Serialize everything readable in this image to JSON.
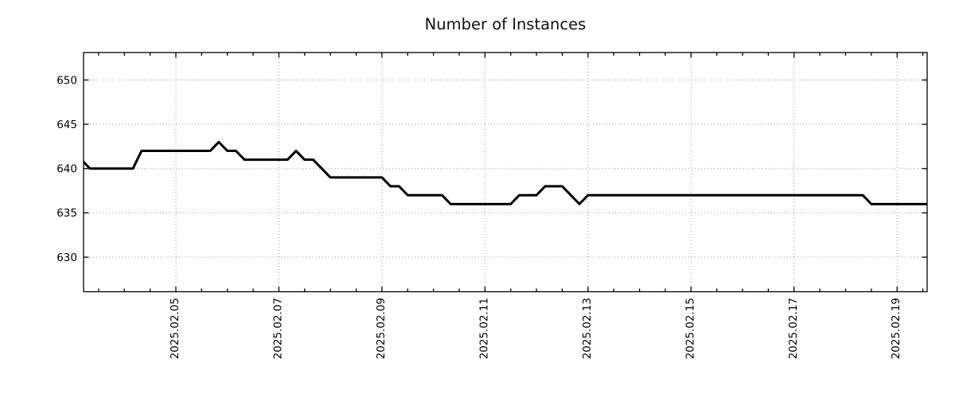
{
  "title": "Number of Instances",
  "chart_data": {
    "type": "line",
    "title": "Number of Instances",
    "xlabel": "",
    "ylabel": "",
    "grid": "dotted",
    "legend_position": "none",
    "line_color": "#000000",
    "grid_color": "#9a9a9a",
    "border_color": "#000000",
    "x_domain": [
      "02.03 05:00",
      "02.19 14:00"
    ],
    "ylim": [
      626.1,
      653.1
    ],
    "y_ticks": [
      630,
      635,
      640,
      645,
      650
    ],
    "x_tick_days": [
      5,
      7,
      9,
      11,
      13,
      15,
      17,
      19
    ],
    "x_tick_labels": [
      "2025.02.05",
      "2025.02.07",
      "2025.02.09",
      "2025.02.11",
      "2025.02.13",
      "2025.02.15",
      "2025.02.17",
      "2025.02.19"
    ],
    "x_minor_tick_hours": 12,
    "series": [
      {
        "name": "Number of Instances",
        "color": "#000000",
        "points": [
          [
            "02.03 04:00",
            641
          ],
          [
            "02.03 08:00",
            640
          ],
          [
            "02.04 04:00",
            640
          ],
          [
            "02.04 08:00",
            642
          ],
          [
            "02.05 16:00",
            642
          ],
          [
            "02.05 20:00",
            643
          ],
          [
            "02.06 00:00",
            642
          ],
          [
            "02.06 04:00",
            642
          ],
          [
            "02.06 08:00",
            641
          ],
          [
            "02.07 04:00",
            641
          ],
          [
            "02.07 08:00",
            642
          ],
          [
            "02.07 12:00",
            641
          ],
          [
            "02.07 16:00",
            641
          ],
          [
            "02.07 20:00",
            640
          ],
          [
            "02.08 00:00",
            639
          ],
          [
            "02.09 00:00",
            639
          ],
          [
            "02.09 04:00",
            638
          ],
          [
            "02.09 08:00",
            638
          ],
          [
            "02.09 12:00",
            637
          ],
          [
            "02.10 04:00",
            637
          ],
          [
            "02.10 08:00",
            636
          ],
          [
            "02.11 12:00",
            636
          ],
          [
            "02.11 16:00",
            637
          ],
          [
            "02.12 00:00",
            637
          ],
          [
            "02.12 04:00",
            638
          ],
          [
            "02.12 12:00",
            638
          ],
          [
            "02.12 20:00",
            636
          ],
          [
            "02.13 00:00",
            637
          ],
          [
            "02.18 08:00",
            637
          ],
          [
            "02.18 12:00",
            636
          ],
          [
            "02.19 14:00",
            636
          ]
        ]
      }
    ]
  }
}
